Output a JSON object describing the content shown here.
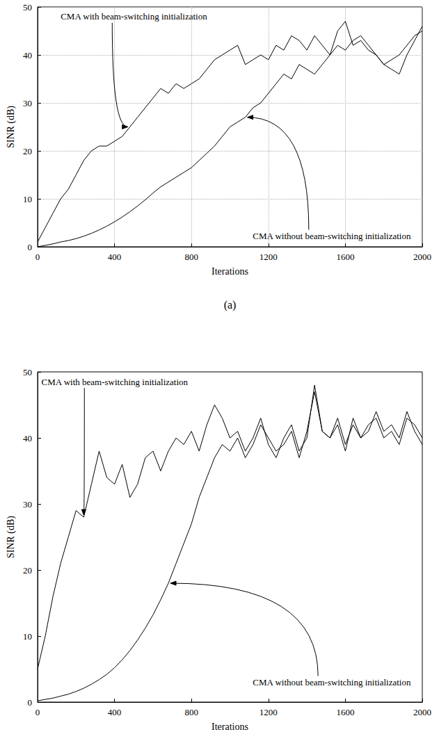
{
  "chart_data": [
    {
      "type": "line",
      "caption": "(a)",
      "xlabel": "Iterations",
      "ylabel": "SINR (dB)",
      "xlim": [
        0,
        2000
      ],
      "ylim": [
        0,
        50
      ],
      "xticks": [
        0,
        400,
        800,
        1200,
        1600,
        2000
      ],
      "yticks": [
        0,
        10,
        20,
        30,
        40,
        50
      ],
      "grid": true,
      "x": [
        0,
        40,
        80,
        120,
        160,
        200,
        240,
        280,
        320,
        360,
        400,
        440,
        480,
        520,
        560,
        600,
        640,
        680,
        720,
        760,
        800,
        840,
        880,
        920,
        960,
        1000,
        1040,
        1080,
        1120,
        1160,
        1200,
        1240,
        1280,
        1320,
        1360,
        1400,
        1440,
        1480,
        1520,
        1560,
        1600,
        1640,
        1680,
        1720,
        1760,
        1800,
        1840,
        1880,
        1920,
        1960,
        2000
      ],
      "series": [
        {
          "name": "CMA with beam-switching initialization",
          "color": "#000000",
          "values": [
            1,
            4,
            7,
            10,
            12,
            15,
            18,
            20,
            21,
            21,
            22,
            23,
            25,
            27,
            29,
            31,
            33,
            32,
            34,
            33,
            34,
            35,
            37,
            39,
            40,
            41,
            42,
            38,
            39,
            40,
            39,
            42,
            41,
            44,
            43,
            41,
            44,
            42,
            40,
            45,
            47,
            42,
            43,
            41,
            40,
            38,
            37,
            36,
            40,
            43,
            46
          ]
        },
        {
          "name": "CMA without beam-switching initialization",
          "color": "#000000",
          "values": [
            0,
            0.3,
            0.6,
            1,
            1.3,
            1.7,
            2.2,
            2.8,
            3.5,
            4.3,
            5.2,
            6.2,
            7.3,
            8.5,
            9.8,
            11.2,
            12.5,
            13.5,
            14.5,
            15.5,
            16.5,
            18,
            19.5,
            21,
            23,
            25,
            26,
            27,
            29,
            30,
            32,
            34,
            36,
            35,
            38,
            37,
            36,
            38,
            40,
            42,
            41,
            43,
            44,
            42,
            40,
            38,
            39,
            40,
            42,
            44,
            45
          ]
        }
      ]
    },
    {
      "type": "line",
      "xlabel": "Iterations",
      "ylabel": "SINR (dB)",
      "xlim": [
        0,
        2000
      ],
      "ylim": [
        0,
        50
      ],
      "xticks": [
        0,
        400,
        800,
        1200,
        1600,
        2000
      ],
      "yticks": [
        0,
        10,
        20,
        30,
        40,
        50
      ],
      "grid": false,
      "x": [
        0,
        40,
        80,
        120,
        160,
        200,
        240,
        280,
        320,
        360,
        400,
        440,
        480,
        520,
        560,
        600,
        640,
        680,
        720,
        760,
        800,
        840,
        880,
        920,
        960,
        1000,
        1040,
        1080,
        1120,
        1160,
        1200,
        1240,
        1280,
        1320,
        1360,
        1400,
        1440,
        1480,
        1520,
        1560,
        1600,
        1640,
        1680,
        1720,
        1760,
        1800,
        1840,
        1880,
        1920,
        1960,
        2000
      ],
      "series": [
        {
          "name": "CMA with beam-switching initialization",
          "color": "#000000",
          "values": [
            5,
            10,
            16,
            21,
            25,
            29,
            28,
            33,
            38,
            34,
            33,
            36,
            31,
            33,
            37,
            38,
            35,
            38,
            40,
            39,
            41,
            38,
            42,
            45,
            43,
            40,
            41,
            38,
            40,
            43,
            39,
            37,
            40,
            42,
            38,
            40,
            48,
            41,
            40,
            42,
            38,
            43,
            40,
            41,
            44,
            41,
            42,
            40,
            44,
            41,
            39
          ]
        },
        {
          "name": "CMA without beam-switching initialization",
          "color": "#000000",
          "values": [
            0.2,
            0.4,
            0.6,
            0.9,
            1.2,
            1.6,
            2.1,
            2.7,
            3.4,
            4.2,
            5.2,
            6.4,
            7.8,
            9.4,
            11.2,
            13.2,
            15.5,
            18,
            21,
            24,
            27,
            31,
            34,
            37,
            39,
            38,
            40,
            37,
            39,
            42,
            40,
            38,
            39,
            41,
            37,
            41,
            47,
            41,
            40,
            43,
            39,
            42,
            40,
            42,
            43,
            40,
            41,
            39,
            43,
            42,
            40
          ]
        }
      ]
    }
  ]
}
